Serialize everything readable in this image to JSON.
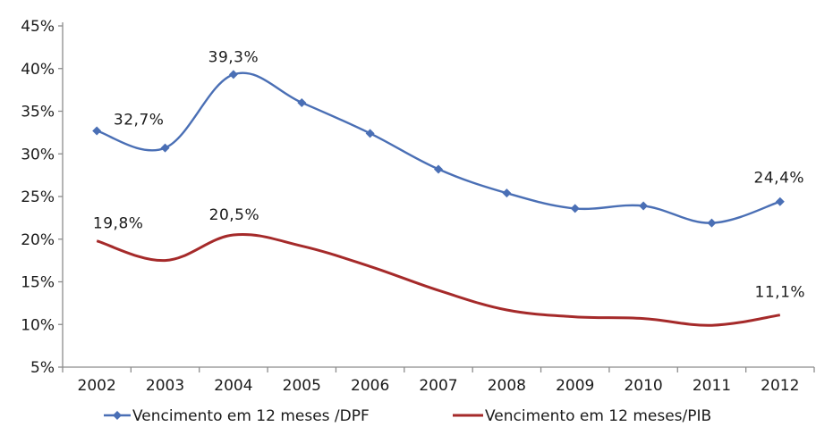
{
  "chart_data": {
    "type": "line",
    "title": "",
    "xlabel": "",
    "ylabel": "",
    "categories": [
      "2002",
      "2003",
      "2004",
      "2005",
      "2006",
      "2007",
      "2008",
      "2009",
      "2010",
      "2011",
      "2012"
    ],
    "ylim": [
      5,
      45
    ],
    "yticks": [
      "5%",
      "10%",
      "15%",
      "20%",
      "25%",
      "30%",
      "35%",
      "40%",
      "45%"
    ],
    "grid": false,
    "legend_position": "bottom",
    "series": [
      {
        "name": "Vencimento em 12 meses /DPF",
        "color": "#4a6fb5",
        "marker": "diamond",
        "values": [
          32.7,
          30.7,
          39.3,
          36.0,
          32.4,
          28.2,
          25.4,
          23.6,
          23.9,
          21.9,
          24.4
        ]
      },
      {
        "name": "Vencimento em 12 meses/PIB",
        "color": "#a52a2a",
        "marker": "none",
        "values": [
          19.8,
          17.5,
          20.5,
          19.2,
          16.8,
          14.0,
          11.7,
          10.9,
          10.7,
          9.9,
          11.1
        ]
      }
    ],
    "data_labels": [
      {
        "series": 0,
        "index": 0,
        "text": "32,7%"
      },
      {
        "series": 0,
        "index": 2,
        "text": "39,3%"
      },
      {
        "series": 0,
        "index": 10,
        "text": "24,4%"
      },
      {
        "series": 1,
        "index": 0,
        "text": "19,8%"
      },
      {
        "series": 1,
        "index": 2,
        "text": "20,5%"
      },
      {
        "series": 1,
        "index": 10,
        "text": "11,1%"
      }
    ]
  }
}
